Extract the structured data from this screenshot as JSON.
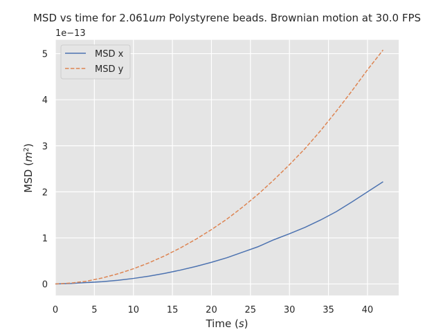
{
  "chart_data": {
    "type": "line",
    "title": {
      "pre": "MSD vs time for 2.061",
      "unit": "um",
      "post": " Polystyrene beads. Brownian motion at 30.0 FPS"
    },
    "xlabel": {
      "text": "Time (",
      "var": "s",
      "close": ")"
    },
    "ylabel": {
      "text": "MSD (",
      "var": "m",
      "sup": "2",
      "close": ")"
    },
    "offset_label": "1e−13",
    "xlim": [
      0,
      44
    ],
    "ylim": [
      -0.25,
      5.3
    ],
    "xticks": [
      0,
      5,
      10,
      15,
      20,
      25,
      30,
      35,
      40
    ],
    "yticks": [
      0,
      1,
      2,
      3,
      4,
      5
    ],
    "grid": true,
    "legend_position": "top-left",
    "series": [
      {
        "name": "MSD x",
        "style": "solid",
        "color": "#4c72b0",
        "x": [
          0,
          2,
          4,
          6,
          8,
          10,
          12,
          14,
          16,
          18,
          20,
          22,
          24,
          26,
          28,
          30,
          32,
          34,
          36,
          38,
          40,
          42
        ],
        "y": [
          0,
          0.01,
          0.03,
          0.05,
          0.08,
          0.12,
          0.17,
          0.23,
          0.3,
          0.38,
          0.47,
          0.57,
          0.69,
          0.81,
          0.96,
          1.09,
          1.23,
          1.39,
          1.57,
          1.78,
          2.0,
          2.22
        ]
      },
      {
        "name": "MSD y",
        "style": "dashed",
        "color": "#dd8452",
        "x": [
          0,
          2,
          4,
          6,
          8,
          10,
          12,
          14,
          16,
          18,
          20,
          22,
          24,
          26,
          28,
          30,
          32,
          34,
          36,
          38,
          40,
          42
        ],
        "y": [
          0,
          0.02,
          0.06,
          0.13,
          0.22,
          0.33,
          0.46,
          0.61,
          0.78,
          0.97,
          1.18,
          1.41,
          1.67,
          1.95,
          2.26,
          2.59,
          2.94,
          3.33,
          3.75,
          4.19,
          4.65,
          5.08
        ]
      }
    ]
  }
}
